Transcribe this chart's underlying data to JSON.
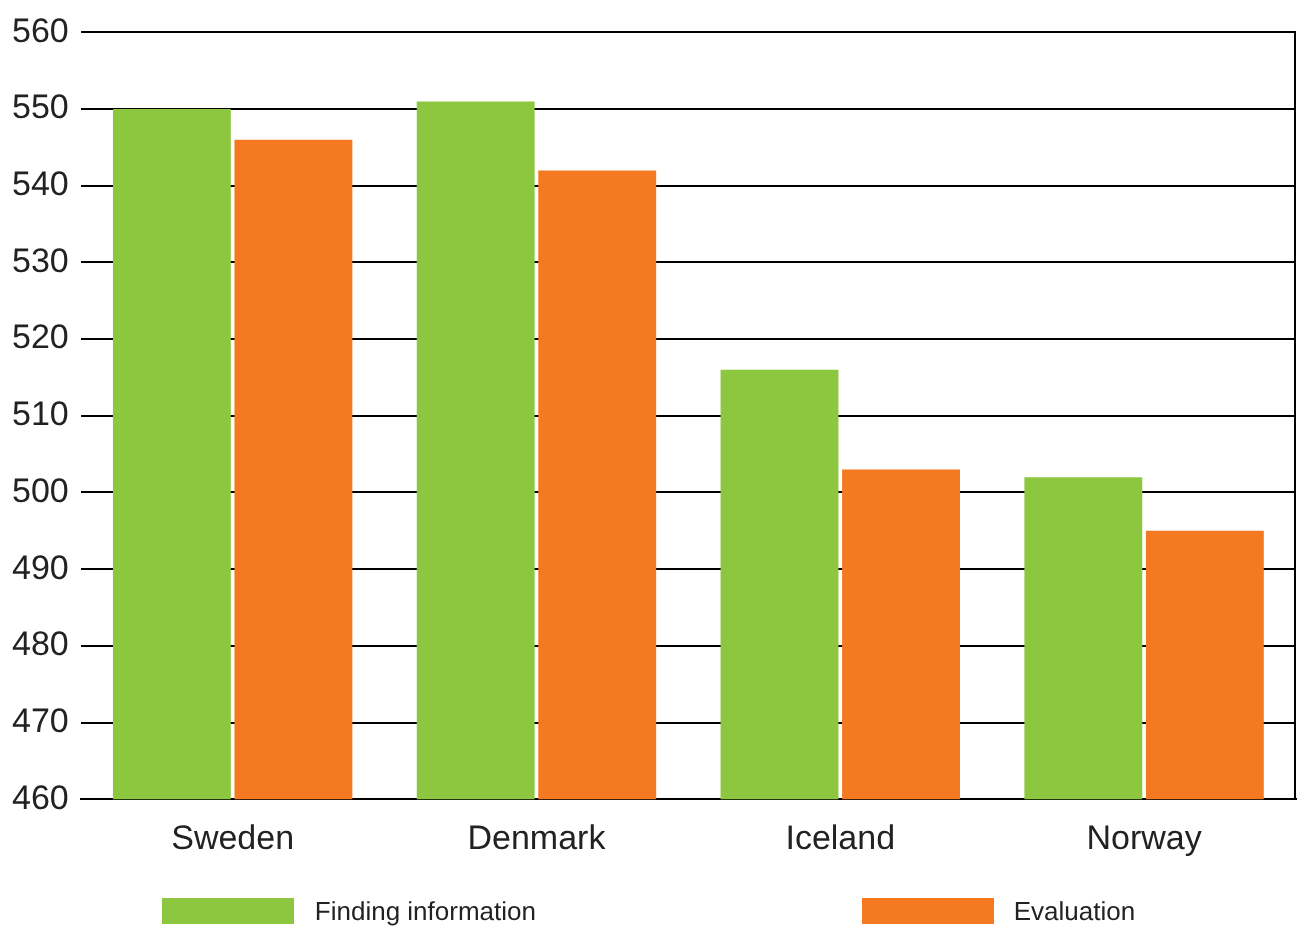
{
  "chart_data": {
    "type": "bar",
    "categories": [
      "Sweden",
      "Denmark",
      "Iceland",
      "Norway"
    ],
    "series": [
      {
        "name": "Finding information",
        "color": "#8dc63f",
        "values": [
          550,
          551,
          516,
          502
        ]
      },
      {
        "name": "Evaluation",
        "color": "#f47920",
        "values": [
          546,
          542,
          503,
          495
        ]
      }
    ],
    "ylim": [
      460,
      560
    ],
    "yticks": [
      460,
      470,
      480,
      490,
      500,
      510,
      520,
      530,
      540,
      550,
      560
    ],
    "grid": "y",
    "legend": "bottom"
  }
}
